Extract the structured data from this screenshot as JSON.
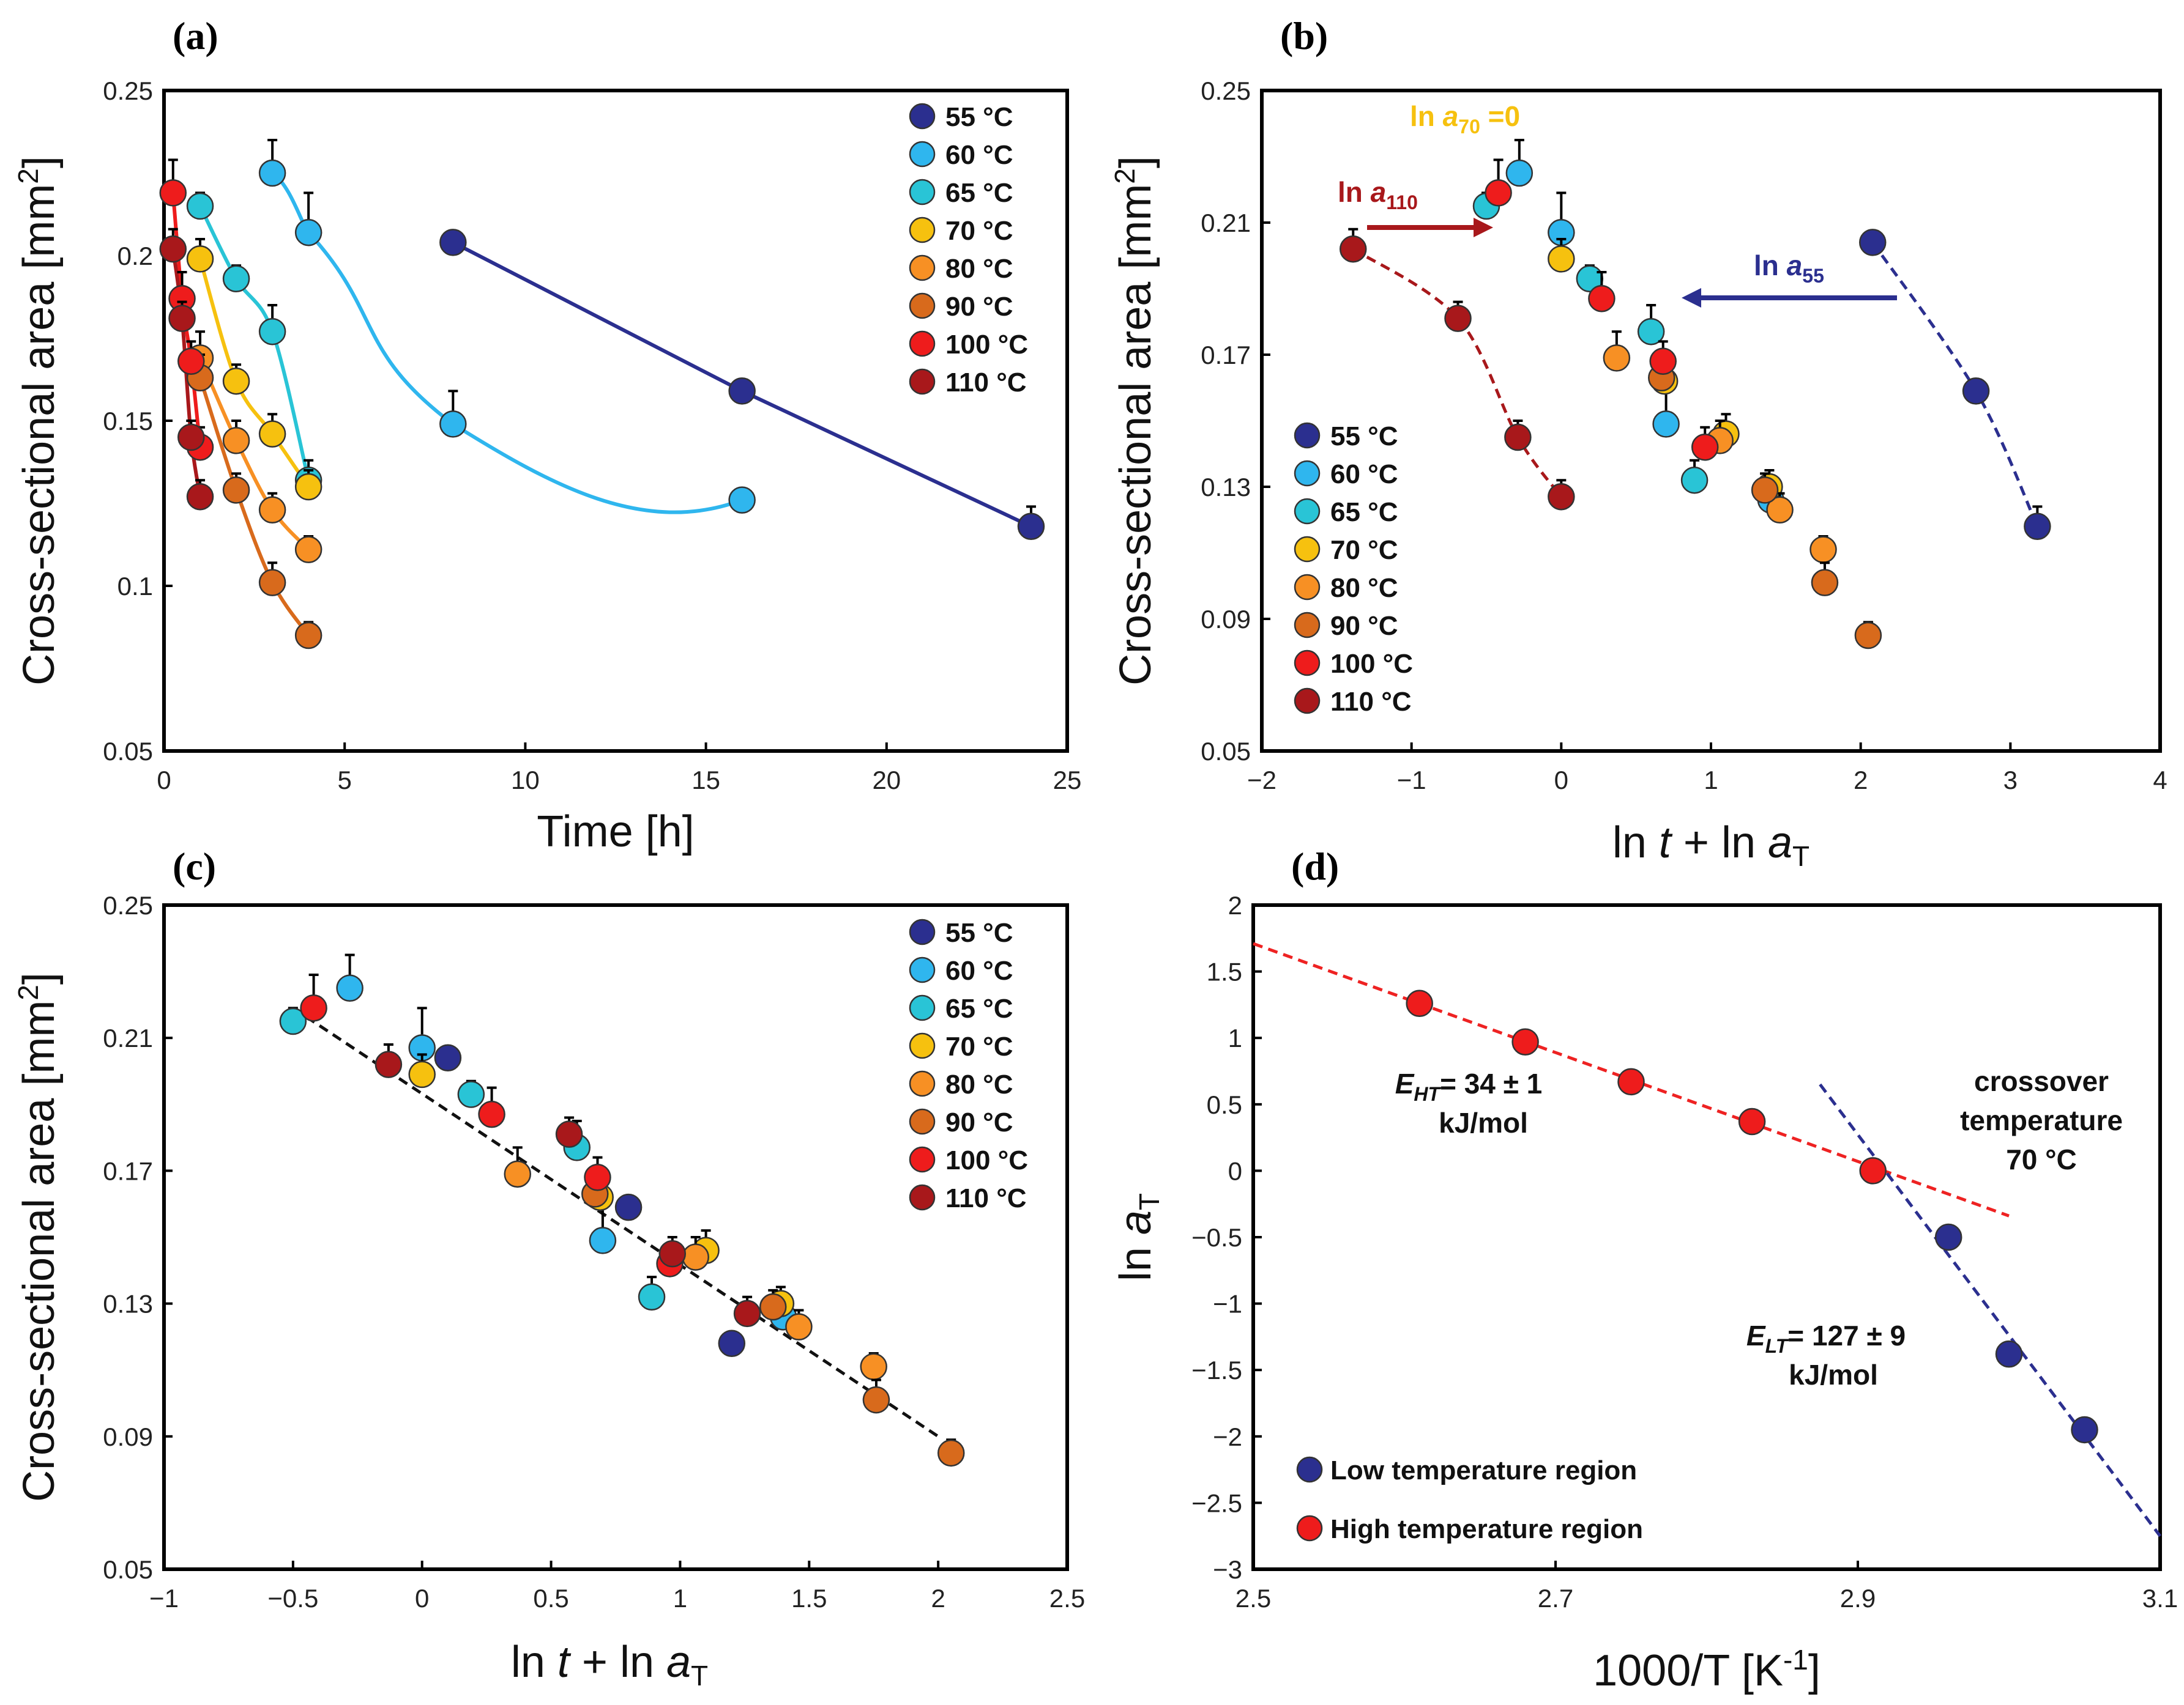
{
  "colors": {
    "55": "#2b2f8f",
    "60": "#2fb6ee",
    "65": "#29c4d6",
    "70": "#f6c10f",
    "80": "#f79024",
    "90": "#d86a1c",
    "100": "#ee1c1c",
    "110": "#a8181b",
    "low": "#2b2f8f",
    "high": "#ee1c1c"
  },
  "legend_labels": [
    "55 °C",
    "60 °C",
    "65 °C",
    "70 °C",
    "80 °C",
    "90 °C",
    "100 °C",
    "110 °C"
  ],
  "chart_data": [
    {
      "id": "a",
      "type": "scatter",
      "title": "(a)",
      "xlabel": "Time [h]",
      "ylabel": "Cross-sectional area [mm²]",
      "xlim": [
        0,
        25
      ],
      "ylim": [
        0.05,
        0.25
      ],
      "xticks": [
        0,
        5,
        10,
        15,
        20,
        25
      ],
      "yticks": [
        0.05,
        0.1,
        0.15,
        0.2,
        0.25
      ],
      "ytick_labels": [
        "0.05",
        "0.1",
        "0.15",
        "0.2",
        "0.25"
      ],
      "series": [
        {
          "name": "55 °C",
          "key": "55",
          "x": [
            8,
            16,
            24
          ],
          "y": [
            0.204,
            0.159,
            0.118
          ],
          "err": [
            0,
            0,
            0.006
          ]
        },
        {
          "name": "60 °C",
          "key": "60",
          "x": [
            3,
            4,
            8,
            16
          ],
          "y": [
            0.225,
            0.207,
            0.149,
            0.126
          ],
          "err": [
            0.01,
            0.012,
            0.01,
            0
          ]
        },
        {
          "name": "65 °C",
          "key": "65",
          "x": [
            1,
            2,
            3,
            4
          ],
          "y": [
            0.215,
            0.193,
            0.177,
            0.132
          ],
          "err": [
            0.004,
            0.004,
            0.008,
            0.006
          ]
        },
        {
          "name": "70 °C",
          "key": "70",
          "x": [
            1,
            2,
            3,
            4
          ],
          "y": [
            0.199,
            0.162,
            0.146,
            0.13
          ],
          "err": [
            0.006,
            0.005,
            0.006,
            0.005
          ]
        },
        {
          "name": "80 °C",
          "key": "80",
          "x": [
            1,
            2,
            3,
            4
          ],
          "y": [
            0.169,
            0.144,
            0.123,
            0.111
          ],
          "err": [
            0.008,
            0.006,
            0.005,
            0.004
          ]
        },
        {
          "name": "90 °C",
          "key": "90",
          "x": [
            1,
            2,
            3,
            4
          ],
          "y": [
            0.163,
            0.129,
            0.101,
            0.085
          ],
          "err": [
            0.007,
            0.005,
            0.006,
            0.004
          ]
        },
        {
          "name": "100 °C",
          "key": "100",
          "x": [
            0.25,
            0.5,
            0.75,
            1
          ],
          "y": [
            0.219,
            0.187,
            0.168,
            0.142
          ],
          "err": [
            0.01,
            0.008,
            0.006,
            0.006
          ]
        },
        {
          "name": "110 °C",
          "key": "110",
          "x": [
            0.25,
            0.5,
            0.75,
            1
          ],
          "y": [
            0.202,
            0.181,
            0.145,
            0.127
          ],
          "err": [
            0.006,
            0.005,
            0.005,
            0.005
          ]
        }
      ],
      "legend_position": "top-right"
    },
    {
      "id": "b",
      "type": "scatter",
      "title": "(b)",
      "xlabel": "ln t + ln aT",
      "ylabel": "Cross-sectional area [mm²]",
      "xlim": [
        -2,
        4
      ],
      "ylim": [
        0.05,
        0.25
      ],
      "xticks": [
        -2,
        -1,
        0,
        1,
        2,
        3,
        4
      ],
      "yticks": [
        0.05,
        0.09,
        0.13,
        0.17,
        0.21,
        0.25
      ],
      "ytick_labels": [
        "0.05",
        "0.09",
        "0.13",
        "0.17",
        "0.21",
        "0.25"
      ],
      "series": [
        {
          "name": "55 °C",
          "key": "55",
          "x": [
            2.08,
            2.77,
            3.18
          ],
          "y": [
            0.204,
            0.159,
            0.118
          ],
          "err": [
            0,
            0,
            0.006
          ]
        },
        {
          "name": "60 °C",
          "key": "60",
          "x": [
            -0.28,
            0.0,
            0.7,
            1.4
          ],
          "y": [
            0.225,
            0.207,
            0.149,
            0.126
          ],
          "err": [
            0.01,
            0.012,
            0.01,
            0
          ]
        },
        {
          "name": "65 °C",
          "key": "65",
          "x": [
            -0.5,
            0.19,
            0.6,
            0.89
          ],
          "y": [
            0.215,
            0.193,
            0.177,
            0.132
          ],
          "err": [
            0.004,
            0.004,
            0.008,
            0.006
          ]
        },
        {
          "name": "70 °C",
          "key": "70",
          "x": [
            0.0,
            0.69,
            1.1,
            1.39
          ],
          "y": [
            0.199,
            0.162,
            0.146,
            0.13
          ],
          "err": [
            0.006,
            0.005,
            0.006,
            0.005
          ]
        },
        {
          "name": "80 °C",
          "key": "80",
          "x": [
            0.37,
            1.06,
            1.46,
            1.75
          ],
          "y": [
            0.169,
            0.144,
            0.123,
            0.111
          ],
          "err": [
            0.008,
            0.006,
            0.005,
            0.004
          ]
        },
        {
          "name": "90 °C",
          "key": "90",
          "x": [
            0.67,
            1.36,
            1.76,
            2.05
          ],
          "y": [
            0.163,
            0.129,
            0.101,
            0.085
          ],
          "err": [
            0.007,
            0.005,
            0.006,
            0.004
          ]
        },
        {
          "name": "100 °C",
          "key": "100",
          "x": [
            -0.42,
            0.27,
            0.68,
            0.96
          ],
          "y": [
            0.219,
            0.187,
            0.168,
            0.142
          ],
          "err": [
            0.01,
            0.008,
            0.006,
            0.006
          ]
        },
        {
          "name": "110 °C",
          "key": "110",
          "x": [
            -1.39,
            -0.69,
            -0.29,
            0.0
          ],
          "y": [
            0.202,
            0.181,
            0.145,
            0.127
          ],
          "err": [
            0.006,
            0.005,
            0.005,
            0.005
          ]
        }
      ],
      "annotations": [
        "ln a70 =0",
        "ln a110",
        "ln a55"
      ],
      "legend_position": "bottom-left"
    },
    {
      "id": "c",
      "type": "scatter",
      "title": "(c)",
      "xlabel": "ln t + ln aT",
      "ylabel": "Cross-sectional area [mm²]",
      "xlim": [
        -1,
        2.5
      ],
      "ylim": [
        0.05,
        0.25
      ],
      "xticks": [
        -1,
        -0.5,
        0,
        0.5,
        1,
        1.5,
        2,
        2.5
      ],
      "yticks": [
        0.05,
        0.09,
        0.13,
        0.17,
        0.21,
        0.25
      ],
      "ytick_labels": [
        "0.05",
        "0.09",
        "0.13",
        "0.17",
        "0.21",
        "0.25"
      ],
      "series": [
        {
          "name": "55 °C",
          "key": "55",
          "x": [
            0.1,
            0.8,
            1.2
          ],
          "y": [
            0.204,
            0.159,
            0.118
          ],
          "err": [
            0,
            0,
            0
          ]
        },
        {
          "name": "60 °C",
          "key": "60",
          "x": [
            -0.28,
            0.0,
            0.7,
            1.4
          ],
          "y": [
            0.225,
            0.207,
            0.149,
            0.126
          ],
          "err": [
            0.01,
            0.012,
            0.01,
            0
          ]
        },
        {
          "name": "65 °C",
          "key": "65",
          "x": [
            -0.5,
            0.19,
            0.6,
            0.89
          ],
          "y": [
            0.215,
            0.193,
            0.177,
            0.132
          ],
          "err": [
            0.004,
            0.004,
            0.008,
            0.006
          ]
        },
        {
          "name": "70 °C",
          "key": "70",
          "x": [
            0.0,
            0.69,
            1.1,
            1.39
          ],
          "y": [
            0.199,
            0.162,
            0.146,
            0.13
          ],
          "err": [
            0.006,
            0.005,
            0.006,
            0.005
          ]
        },
        {
          "name": "80 °C",
          "key": "80",
          "x": [
            0.37,
            1.06,
            1.46,
            1.75
          ],
          "y": [
            0.169,
            0.144,
            0.123,
            0.111
          ],
          "err": [
            0.008,
            0.006,
            0.005,
            0.004
          ]
        },
        {
          "name": "90 °C",
          "key": "90",
          "x": [
            0.67,
            1.36,
            1.76,
            2.05
          ],
          "y": [
            0.163,
            0.129,
            0.101,
            0.085
          ],
          "err": [
            0.007,
            0.005,
            0.006,
            0.004
          ]
        },
        {
          "name": "100 °C",
          "key": "100",
          "x": [
            -0.42,
            0.27,
            0.68,
            0.96
          ],
          "y": [
            0.219,
            0.187,
            0.168,
            0.142
          ],
          "err": [
            0.01,
            0.008,
            0.006,
            0.006
          ]
        },
        {
          "name": "110 °C",
          "key": "110",
          "x": [
            -0.13,
            0.57,
            0.97,
            1.26
          ],
          "y": [
            0.202,
            0.181,
            0.145,
            0.127
          ],
          "err": [
            0.006,
            0.005,
            0.005,
            0.005
          ]
        }
      ],
      "fit_line": {
        "x": [
          -0.5,
          2.0
        ],
        "y": [
          0.219,
          0.09
        ]
      },
      "legend_position": "top-right"
    },
    {
      "id": "d",
      "type": "scatter",
      "title": "(d)",
      "xlabel": "1000/T [K⁻¹]",
      "ylabel": "ln aT",
      "xlim": [
        2.5,
        3.1
      ],
      "ylim": [
        -3,
        2
      ],
      "xticks": [
        2.5,
        2.7,
        2.9,
        3.1
      ],
      "xtick_labels": [
        "2.5",
        "2.7",
        "2.9",
        "3.1"
      ],
      "yticks": [
        -3,
        -2.5,
        -2,
        -1.5,
        -1,
        -0.5,
        0,
        0.5,
        1,
        1.5,
        2
      ],
      "ytick_labels": [
        "-3",
        "-2.5",
        "-2",
        "-1.5",
        "-1",
        "-0.5",
        "0",
        "0.5",
        "1",
        "1.5",
        "2"
      ],
      "series": [
        {
          "name": "Low temperature region",
          "key": "low",
          "x": [
            2.96,
            3.0,
            3.05
          ],
          "y": [
            -0.5,
            -1.38,
            -1.95
          ]
        },
        {
          "name": "High temperature region",
          "key": "high",
          "x": [
            2.61,
            2.68,
            2.75,
            2.83,
            2.91
          ],
          "y": [
            1.26,
            0.97,
            0.67,
            0.37,
            0.0
          ]
        }
      ],
      "fit_lines": [
        {
          "key": "high",
          "x": [
            2.5,
            3.0
          ],
          "y": [
            1.71,
            -0.34
          ]
        },
        {
          "key": "low",
          "x": [
            2.875,
            3.1
          ],
          "y": [
            0.65,
            -2.75
          ]
        }
      ],
      "annotations": {
        "e_ht": "EHT= 34 ± 1",
        "e_ht_unit": "kJ/mol",
        "e_lt": "ELT= 127 ± 9",
        "e_lt_unit": "kJ/mol",
        "crossover_1": "crossover",
        "crossover_2": "temperature",
        "crossover_3": "70 °C"
      },
      "legend_position": "bottom-left"
    }
  ]
}
